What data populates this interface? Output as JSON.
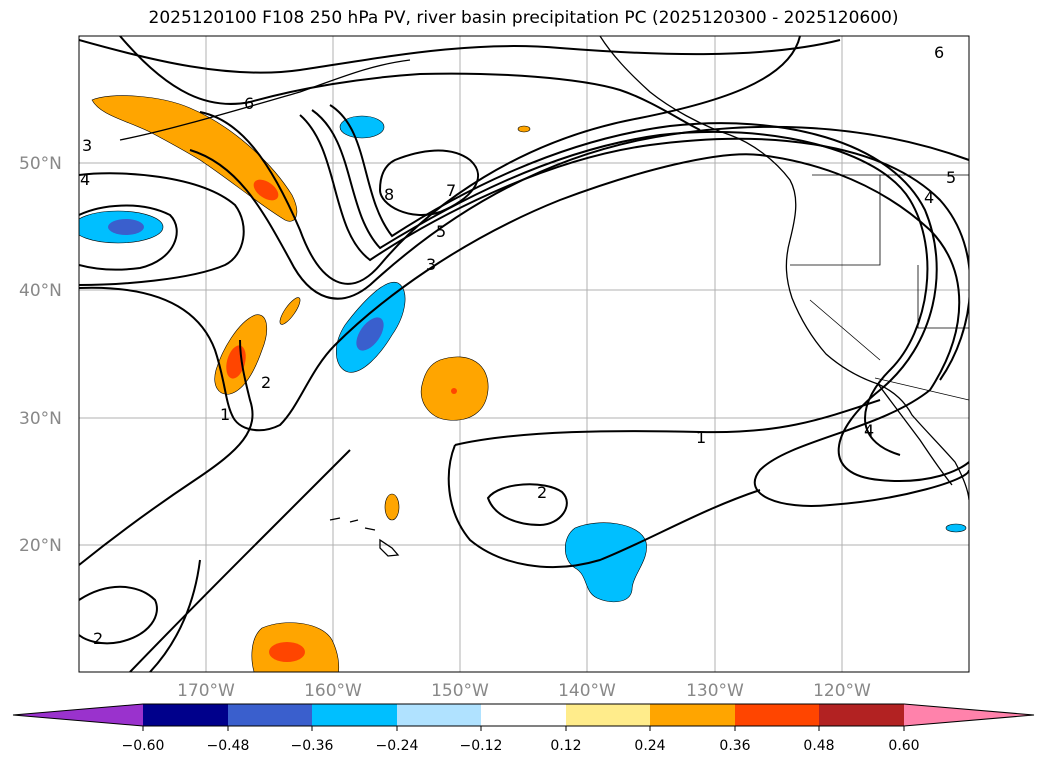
{
  "title": "2025120100 F108 250 hPa PV, river basin precipitation PC (2025120300 - 2025120600)",
  "map": {
    "lat_labels": [
      "50°N",
      "40°N",
      "30°N",
      "20°N"
    ],
    "lon_labels": [
      "170°W",
      "160°W",
      "150°W",
      "140°W",
      "130°W",
      "120°W"
    ],
    "contour_labels": [
      "6",
      "3",
      "4",
      "8",
      "7",
      "5",
      "3",
      "2",
      "1",
      "1",
      "2",
      "2",
      "4",
      "4",
      "6",
      "5"
    ]
  },
  "colorbar": {
    "tick_labels": [
      "−0.60",
      "−0.48",
      "−0.36",
      "−0.24",
      "−0.12",
      "0.12",
      "0.24",
      "0.36",
      "0.48",
      "0.60"
    ],
    "colors": [
      "#9a32cd",
      "#00008b",
      "#3a5fcd",
      "#00bfff",
      "#b0e2ff",
      "#ffffff",
      "#ffec8b",
      "#ffa500",
      "#ff4500",
      "#b22222",
      "#ff82ab"
    ]
  }
}
